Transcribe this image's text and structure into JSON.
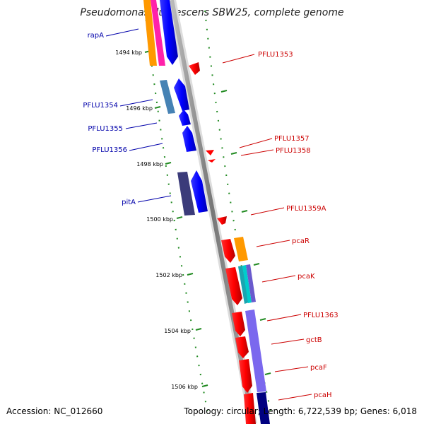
{
  "title": "Pseudomonas fluorescens SBW25, complete genome",
  "footer": {
    "accession": "Accession: NC_012660",
    "summary": "Topology: circular; Length: 6,722,539 bp; Genes: 6,018"
  },
  "scale_ticks": [
    "1494 kbp",
    "1496 kbp",
    "1498 kbp",
    "1500 kbp",
    "1502 kbp",
    "1504 kbp",
    "1506 kbp"
  ],
  "genes_left": [
    {
      "name": "rapA",
      "color": "#0000aa"
    },
    {
      "name": "PFLU1354",
      "color": "#0000aa"
    },
    {
      "name": "PFLU1355",
      "color": "#0000aa"
    },
    {
      "name": "PFLU1356",
      "color": "#0000aa"
    },
    {
      "name": "pitA",
      "color": "#0000aa"
    }
  ],
  "genes_right": [
    {
      "name": "PFLU1353",
      "color": "#cc0000"
    },
    {
      "name": "PFLU1357",
      "color": "#cc0000"
    },
    {
      "name": "PFLU1358",
      "color": "#cc0000"
    },
    {
      "name": "PFLU1359A",
      "color": "#cc0000"
    },
    {
      "name": "pcaR",
      "color": "#cc0000"
    },
    {
      "name": "pcaK",
      "color": "#cc0000"
    },
    {
      "name": "PFLU1363",
      "color": "#cc0000"
    },
    {
      "name": "gctB",
      "color": "#cc0000"
    },
    {
      "name": "pcaF",
      "color": "#cc0000"
    },
    {
      "name": "pcaH",
      "color": "#cc0000"
    }
  ],
  "colors": {
    "backbone": "#888888",
    "forward_strand": "#0000ff",
    "reverse_strand": "#ff0000",
    "tick_marks": "#228b22"
  }
}
